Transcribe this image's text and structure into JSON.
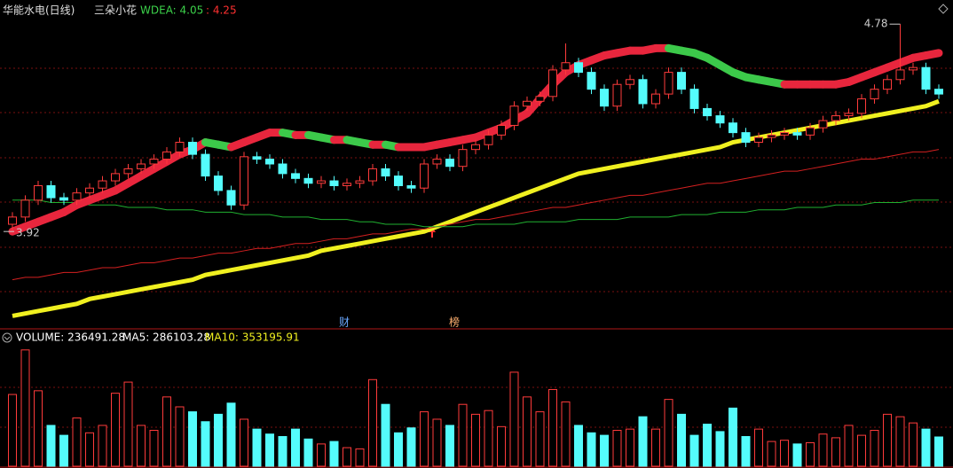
{
  "chart_data": {
    "type": "candlestick",
    "title": "华能水电(日线)",
    "indicator_title": "三朵小花",
    "indicator": {
      "values": [
        4.05,
        4.25
      ],
      "value_labels": [
        "WDEA: 4.05",
        ": 4.25"
      ],
      "colors": [
        "#3cd24a",
        "#ff3030"
      ]
    },
    "ylim": [
      3.52,
      4.88
    ],
    "up_color": "#ff3b3b",
    "down_color": "#54fcfc",
    "low_label": 3.92,
    "high_label": 4.78,
    "events": [
      "财",
      "榜"
    ],
    "ohlc": [
      [
        3.95,
        4.0,
        3.92,
        3.98
      ],
      [
        3.98,
        4.07,
        3.96,
        4.05
      ],
      [
        4.05,
        4.13,
        4.03,
        4.11
      ],
      [
        4.11,
        4.13,
        4.04,
        4.06
      ],
      [
        4.06,
        4.08,
        4.03,
        4.05
      ],
      [
        4.05,
        4.1,
        4.03,
        4.08
      ],
      [
        4.08,
        4.12,
        4.06,
        4.1
      ],
      [
        4.1,
        4.15,
        4.08,
        4.13
      ],
      [
        4.13,
        4.18,
        4.11,
        4.16
      ],
      [
        4.16,
        4.2,
        4.14,
        4.18
      ],
      [
        4.18,
        4.22,
        4.16,
        4.2
      ],
      [
        4.2,
        4.24,
        4.18,
        4.22
      ],
      [
        4.22,
        4.27,
        4.2,
        4.25
      ],
      [
        4.25,
        4.31,
        4.23,
        4.29
      ],
      [
        4.29,
        4.31,
        4.22,
        4.24
      ],
      [
        4.24,
        4.26,
        4.13,
        4.15
      ],
      [
        4.15,
        4.17,
        4.07,
        4.09
      ],
      [
        4.09,
        4.11,
        4.01,
        4.03
      ],
      [
        4.03,
        4.25,
        4.01,
        4.23
      ],
      [
        4.23,
        4.25,
        4.2,
        4.22
      ],
      [
        4.22,
        4.24,
        4.18,
        4.2
      ],
      [
        4.2,
        4.22,
        4.14,
        4.16
      ],
      [
        4.16,
        4.18,
        4.12,
        4.14
      ],
      [
        4.14,
        4.16,
        4.1,
        4.12
      ],
      [
        4.12,
        4.15,
        4.1,
        4.13
      ],
      [
        4.13,
        4.15,
        4.09,
        4.11
      ],
      [
        4.11,
        4.14,
        4.09,
        4.12
      ],
      [
        4.12,
        4.15,
        4.1,
        4.13
      ],
      [
        4.13,
        4.2,
        4.11,
        4.18
      ],
      [
        4.18,
        4.2,
        4.13,
        4.15
      ],
      [
        4.15,
        4.17,
        4.09,
        4.11
      ],
      [
        4.11,
        4.13,
        4.08,
        4.1
      ],
      [
        4.1,
        4.22,
        4.08,
        4.2
      ],
      [
        4.2,
        4.24,
        4.18,
        4.22
      ],
      [
        4.22,
        4.24,
        4.17,
        4.19
      ],
      [
        4.19,
        4.28,
        4.17,
        4.26
      ],
      [
        4.26,
        4.3,
        4.24,
        4.28
      ],
      [
        4.28,
        4.34,
        4.26,
        4.32
      ],
      [
        4.32,
        4.38,
        4.3,
        4.36
      ],
      [
        4.36,
        4.46,
        4.34,
        4.44
      ],
      [
        4.44,
        4.48,
        4.42,
        4.46
      ],
      [
        4.46,
        4.5,
        4.44,
        4.48
      ],
      [
        4.48,
        4.61,
        4.46,
        4.59
      ],
      [
        4.59,
        4.7,
        4.57,
        4.62
      ],
      [
        4.62,
        4.64,
        4.56,
        4.58
      ],
      [
        4.58,
        4.6,
        4.49,
        4.51
      ],
      [
        4.51,
        4.53,
        4.42,
        4.44
      ],
      [
        4.44,
        4.55,
        4.42,
        4.53
      ],
      [
        4.53,
        4.57,
        4.51,
        4.55
      ],
      [
        4.55,
        4.57,
        4.43,
        4.45
      ],
      [
        4.45,
        4.51,
        4.43,
        4.49
      ],
      [
        4.49,
        4.6,
        4.47,
        4.58
      ],
      [
        4.58,
        4.6,
        4.49,
        4.51
      ],
      [
        4.51,
        4.53,
        4.41,
        4.43
      ],
      [
        4.43,
        4.45,
        4.38,
        4.4
      ],
      [
        4.4,
        4.42,
        4.35,
        4.37
      ],
      [
        4.37,
        4.39,
        4.31,
        4.33
      ],
      [
        4.33,
        4.35,
        4.27,
        4.29
      ],
      [
        4.29,
        4.33,
        4.27,
        4.31
      ],
      [
        4.31,
        4.34,
        4.29,
        4.32
      ],
      [
        4.32,
        4.35,
        4.3,
        4.33
      ],
      [
        4.33,
        4.35,
        4.3,
        4.32
      ],
      [
        4.32,
        4.37,
        4.3,
        4.35
      ],
      [
        4.35,
        4.4,
        4.33,
        4.38
      ],
      [
        4.38,
        4.42,
        4.36,
        4.4
      ],
      [
        4.4,
        4.43,
        4.38,
        4.41
      ],
      [
        4.41,
        4.49,
        4.39,
        4.47
      ],
      [
        4.47,
        4.53,
        4.45,
        4.51
      ],
      [
        4.51,
        4.57,
        4.49,
        4.55
      ],
      [
        4.55,
        4.78,
        4.53,
        4.59
      ],
      [
        4.59,
        4.62,
        4.57,
        4.6
      ],
      [
        4.6,
        4.62,
        4.49,
        4.51
      ],
      [
        4.51,
        4.53,
        4.47,
        4.49
      ]
    ],
    "lines": [
      {
        "color": "#f0f020",
        "width": 5,
        "values": [
          3.57,
          3.58,
          3.59,
          3.6,
          3.61,
          3.62,
          3.64,
          3.65,
          3.66,
          3.67,
          3.68,
          3.69,
          3.7,
          3.71,
          3.72,
          3.74,
          3.75,
          3.76,
          3.77,
          3.78,
          3.79,
          3.8,
          3.81,
          3.82,
          3.84,
          3.85,
          3.86,
          3.87,
          3.88,
          3.89,
          3.9,
          3.91,
          3.92,
          3.94,
          3.96,
          3.98,
          4.0,
          4.02,
          4.04,
          4.06,
          4.08,
          4.1,
          4.12,
          4.14,
          4.16,
          4.17,
          4.18,
          4.19,
          4.2,
          4.21,
          4.22,
          4.23,
          4.24,
          4.25,
          4.26,
          4.27,
          4.29,
          4.3,
          4.31,
          4.32,
          4.33,
          4.34,
          4.35,
          4.36,
          4.37,
          4.38,
          4.39,
          4.4,
          4.41,
          4.42,
          4.43,
          4.44,
          4.46
        ]
      },
      {
        "color": "#d42020",
        "width": 1,
        "values": [
          3.72,
          3.73,
          3.73,
          3.74,
          3.75,
          3.75,
          3.76,
          3.77,
          3.77,
          3.78,
          3.79,
          3.79,
          3.8,
          3.81,
          3.81,
          3.82,
          3.83,
          3.83,
          3.84,
          3.85,
          3.85,
          3.86,
          3.87,
          3.87,
          3.88,
          3.89,
          3.89,
          3.9,
          3.91,
          3.91,
          3.92,
          3.93,
          3.93,
          3.94,
          3.95,
          3.96,
          3.97,
          3.97,
          3.98,
          3.99,
          4.0,
          4.01,
          4.02,
          4.02,
          4.03,
          4.04,
          4.05,
          4.06,
          4.07,
          4.07,
          4.08,
          4.09,
          4.1,
          4.11,
          4.12,
          4.12,
          4.13,
          4.14,
          4.15,
          4.16,
          4.17,
          4.17,
          4.18,
          4.19,
          4.2,
          4.21,
          4.22,
          4.22,
          4.23,
          4.24,
          4.25,
          4.25,
          4.26
        ]
      },
      {
        "color": "#20b030",
        "width": 1,
        "values": [
          4.05,
          4.05,
          4.05,
          4.04,
          4.04,
          4.04,
          4.03,
          4.03,
          4.03,
          4.02,
          4.02,
          4.02,
          4.01,
          4.01,
          4.01,
          4.0,
          4.0,
          4.0,
          3.99,
          3.99,
          3.99,
          3.98,
          3.98,
          3.98,
          3.97,
          3.97,
          3.97,
          3.96,
          3.96,
          3.95,
          3.95,
          3.95,
          3.94,
          3.94,
          3.94,
          3.94,
          3.95,
          3.95,
          3.95,
          3.95,
          3.96,
          3.96,
          3.96,
          3.96,
          3.97,
          3.97,
          3.97,
          3.97,
          3.98,
          3.98,
          3.98,
          3.98,
          3.99,
          3.99,
          3.99,
          4.0,
          4.0,
          4.0,
          4.01,
          4.01,
          4.01,
          4.02,
          4.02,
          4.02,
          4.03,
          4.03,
          4.03,
          4.04,
          4.04,
          4.04,
          4.05,
          4.05,
          4.05
        ]
      }
    ],
    "ribbon": {
      "rise_color": "#e8263d",
      "fall_color": "#3cc94a",
      "values": [
        3.92,
        3.94,
        3.96,
        3.98,
        4.0,
        4.03,
        4.05,
        4.07,
        4.09,
        4.12,
        4.15,
        4.18,
        4.21,
        4.24,
        4.26,
        4.29,
        4.28,
        4.27,
        4.29,
        4.31,
        4.33,
        4.33,
        4.32,
        4.32,
        4.31,
        4.3,
        4.3,
        4.29,
        4.28,
        4.28,
        4.27,
        4.27,
        4.27,
        4.28,
        4.29,
        4.3,
        4.31,
        4.33,
        4.35,
        4.38,
        4.41,
        4.47,
        4.53,
        4.58,
        4.61,
        4.63,
        4.65,
        4.66,
        4.67,
        4.67,
        4.68,
        4.68,
        4.67,
        4.66,
        4.64,
        4.61,
        4.58,
        4.56,
        4.55,
        4.54,
        4.53,
        4.53,
        4.53,
        4.53,
        4.53,
        4.54,
        4.56,
        4.58,
        4.6,
        4.62,
        4.64,
        4.65,
        4.66
      ]
    },
    "volume": {
      "ylim": [
        0,
        960000
      ],
      "values": [
        580000,
        940000,
        610000,
        330000,
        250000,
        390000,
        270000,
        330000,
        590000,
        680000,
        330000,
        290000,
        560000,
        480000,
        440000,
        360000,
        420000,
        510000,
        380000,
        300000,
        260000,
        240000,
        300000,
        220000,
        180000,
        200000,
        150000,
        140000,
        700000,
        500000,
        270000,
        310000,
        440000,
        380000,
        330000,
        500000,
        420000,
        450000,
        320000,
        760000,
        560000,
        440000,
        620000,
        520000,
        330000,
        270000,
        250000,
        290000,
        300000,
        400000,
        300000,
        540000,
        420000,
        250000,
        340000,
        280000,
        470000,
        240000,
        300000,
        200000,
        210000,
        180000,
        190000,
        260000,
        230000,
        330000,
        250000,
        290000,
        420000,
        400000,
        350000,
        300000,
        236491.28
      ],
      "legend": {
        "values": [
          236491.28,
          286103.28,
          353195.91
        ],
        "value_labels": [
          "VOLUME: 236491.28",
          "MA5: 286103.28",
          "MA10: 353195.91"
        ],
        "colors": [
          "#ffffff",
          "#ffffff",
          "#f0f020"
        ]
      }
    }
  }
}
